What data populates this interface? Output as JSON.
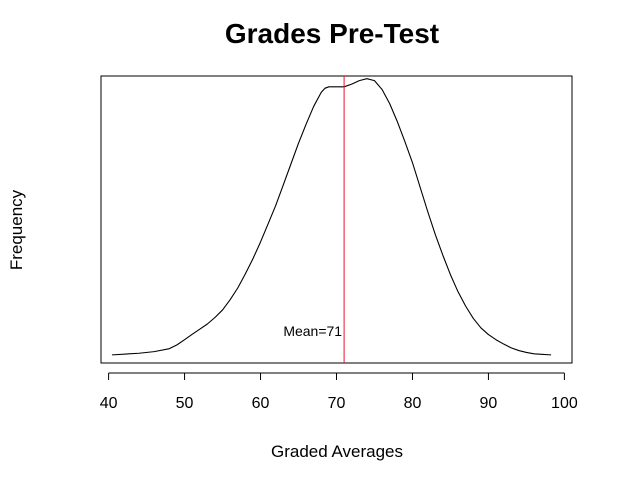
{
  "chart_data": {
    "type": "line",
    "title": "Grades Pre-Test",
    "xlabel": "Graded Averages",
    "ylabel": "Frequency",
    "xlim": [
      39,
      101
    ],
    "ylim": [
      -0.03,
      1.03
    ],
    "xticks": [
      40,
      50,
      60,
      70,
      80,
      90,
      100
    ],
    "x_tick_labels": [
      "40",
      "50",
      "60",
      "70",
      "80",
      "90",
      "100"
    ],
    "y_ticks_shown": false,
    "grid": false,
    "legend": "none",
    "series": [
      {
        "color": "#000000",
        "x": [
          40.5,
          44,
          46,
          48,
          49,
          50,
          51,
          52,
          53,
          54,
          55,
          56,
          57,
          58,
          59,
          60,
          61,
          62,
          63,
          64,
          65,
          66,
          67,
          68,
          68.5,
          69,
          70,
          71,
          72,
          73,
          74,
          75,
          76,
          77,
          78,
          79,
          80,
          81,
          82,
          83,
          84,
          85,
          86,
          87,
          88,
          89,
          90,
          91,
          92,
          93,
          94,
          95,
          96,
          97,
          98.2
        ],
        "y": [
          0.0,
          0.006,
          0.012,
          0.023,
          0.037,
          0.056,
          0.076,
          0.095,
          0.114,
          0.138,
          0.166,
          0.204,
          0.247,
          0.299,
          0.355,
          0.417,
          0.484,
          0.552,
          0.628,
          0.705,
          0.782,
          0.852,
          0.918,
          0.97,
          0.985,
          0.99,
          0.99,
          0.99,
          1.0,
          1.013,
          1.02,
          1.013,
          0.98,
          0.928,
          0.862,
          0.788,
          0.71,
          0.62,
          0.53,
          0.445,
          0.368,
          0.296,
          0.233,
          0.18,
          0.135,
          0.1,
          0.075,
          0.056,
          0.04,
          0.026,
          0.016,
          0.009,
          0.004,
          0.002,
          0.0
        ]
      }
    ],
    "reference_line": {
      "x": 71,
      "color": "#ee1133",
      "label": "Mean=71",
      "label_y": 0.07
    }
  }
}
